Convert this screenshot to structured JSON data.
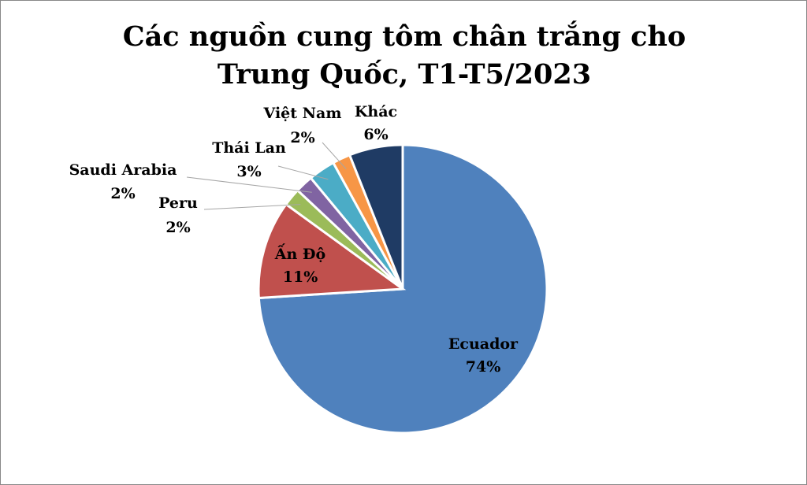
{
  "chart_data": {
    "type": "pie",
    "title": "Các nguồn cung tôm chân trắng cho Trung Quốc, T1-T5/2023",
    "categories": [
      "Ecuador",
      "Ấn Độ",
      "Peru",
      "Saudi Arabia",
      "Thái Lan",
      "Việt Nam",
      "Khác"
    ],
    "values": [
      74,
      11,
      2,
      2,
      3,
      2,
      6
    ],
    "value_labels": [
      "74%",
      "11%",
      "2%",
      "2%",
      "3%",
      "2%",
      "6%"
    ],
    "colors": [
      "#4f81bd",
      "#c0504d",
      "#9bbb59",
      "#8064a2",
      "#4bacc6",
      "#f79646",
      "#1f3b64"
    ]
  }
}
